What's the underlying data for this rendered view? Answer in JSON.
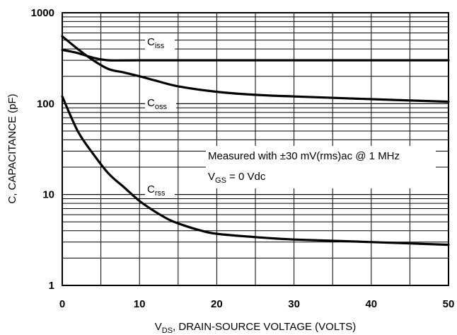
{
  "chart_data": {
    "type": "line",
    "xlabel_prefix": "V",
    "xlabel_sub": "DS",
    "xlabel_rest": ", DRAIN-SOURCE VOLTAGE (VOLTS)",
    "ylabel": "C, CAPACITANCE (pF)",
    "xlim": [
      0,
      50
    ],
    "ylim": [
      1,
      1000
    ],
    "yscale": "log",
    "x_ticks": [
      "0",
      "10",
      "20",
      "30",
      "40",
      "50"
    ],
    "y_ticks": [
      "1",
      "10",
      "100",
      "1000"
    ],
    "grid": true,
    "annotation_line1": "Measured with ±30 mV(rms)ac @ 1 MHz",
    "annotation_line2_prefix": "V",
    "annotation_line2_sub": "GS",
    "annotation_line2_rest": " = 0 Vdc",
    "series": [
      {
        "name_main": "C",
        "name_sub": "iss",
        "x": [
          0,
          2,
          4,
          6,
          10,
          20,
          30,
          40,
          50
        ],
        "y": [
          390,
          360,
          320,
          300,
          300,
          300,
          300,
          300,
          300
        ]
      },
      {
        "name_main": "C",
        "name_sub": "oss",
        "x": [
          0,
          2,
          4,
          6,
          8,
          10,
          12,
          15,
          20,
          25,
          30,
          40,
          50
        ],
        "y": [
          550,
          400,
          300,
          240,
          220,
          200,
          180,
          155,
          135,
          125,
          120,
          112,
          105
        ]
      },
      {
        "name_main": "C",
        "name_sub": "rss",
        "x": [
          0,
          2,
          4,
          6,
          8,
          10,
          12,
          14,
          16,
          18,
          20,
          25,
          30,
          40,
          50
        ],
        "y": [
          120,
          50,
          28,
          17,
          12,
          8.5,
          6.5,
          5.2,
          4.5,
          4.0,
          3.7,
          3.4,
          3.2,
          3.0,
          2.8
        ]
      }
    ]
  }
}
